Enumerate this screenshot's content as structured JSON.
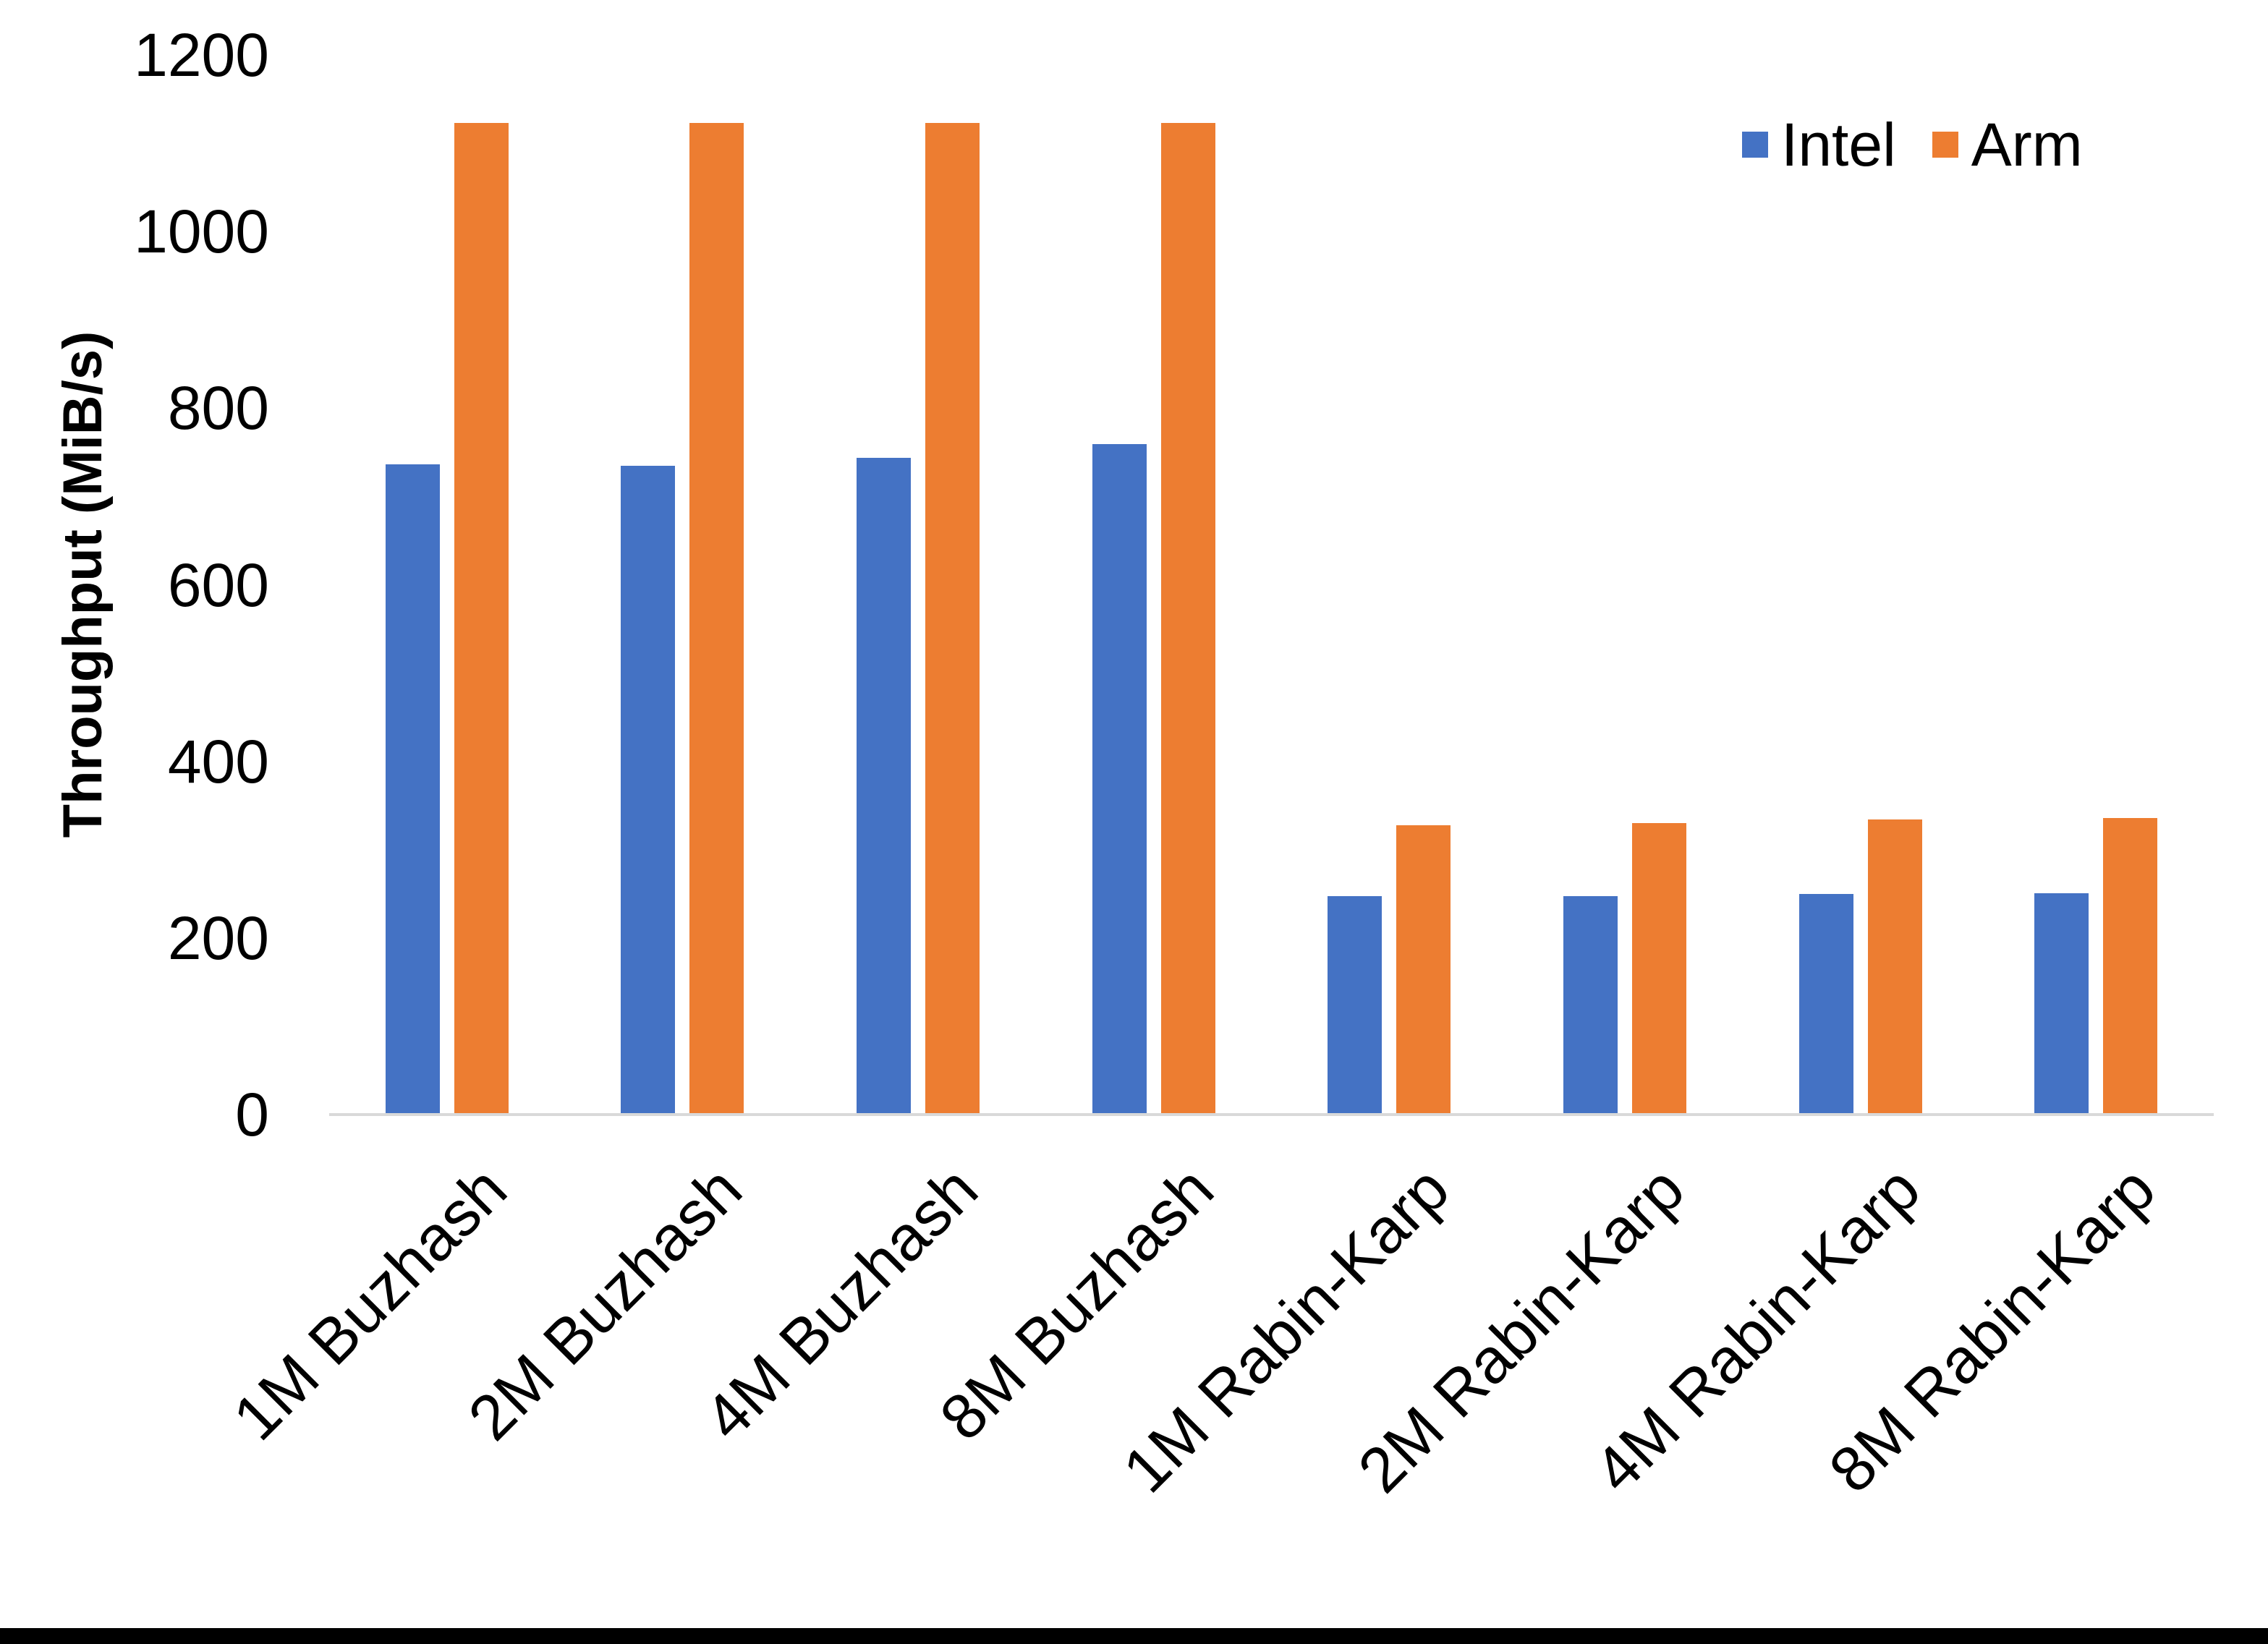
{
  "chart_data": {
    "type": "bar",
    "title": "",
    "xlabel": "",
    "ylabel": "Throughput (MiB/s)",
    "ylim": [
      0,
      1200
    ],
    "yticks": [
      0,
      200,
      400,
      600,
      800,
      1000,
      1200
    ],
    "grid": false,
    "legend_position": "top-right",
    "categories": [
      "1M Buzhash",
      "2M Buzhash",
      "4M Buzhash",
      "8M Buzhash",
      "1M Rabin-Karp",
      "2M Rabin-Karp",
      "4M Rabin-Karp",
      "8M Rabin-Karp"
    ],
    "series": [
      {
        "name": "Intel",
        "color": "#4472C4",
        "values": [
          736,
          735,
          744,
          759,
          247,
          247,
          250,
          251
        ]
      },
      {
        "name": "Arm",
        "color": "#ED7D31",
        "values": [
          1123,
          1123,
          1123,
          1123,
          328,
          330,
          334,
          336
        ]
      }
    ],
    "axis_line_color": "#D9D9D9",
    "background_color": "#FFFFFF",
    "border_bottom_color": "#000000"
  }
}
